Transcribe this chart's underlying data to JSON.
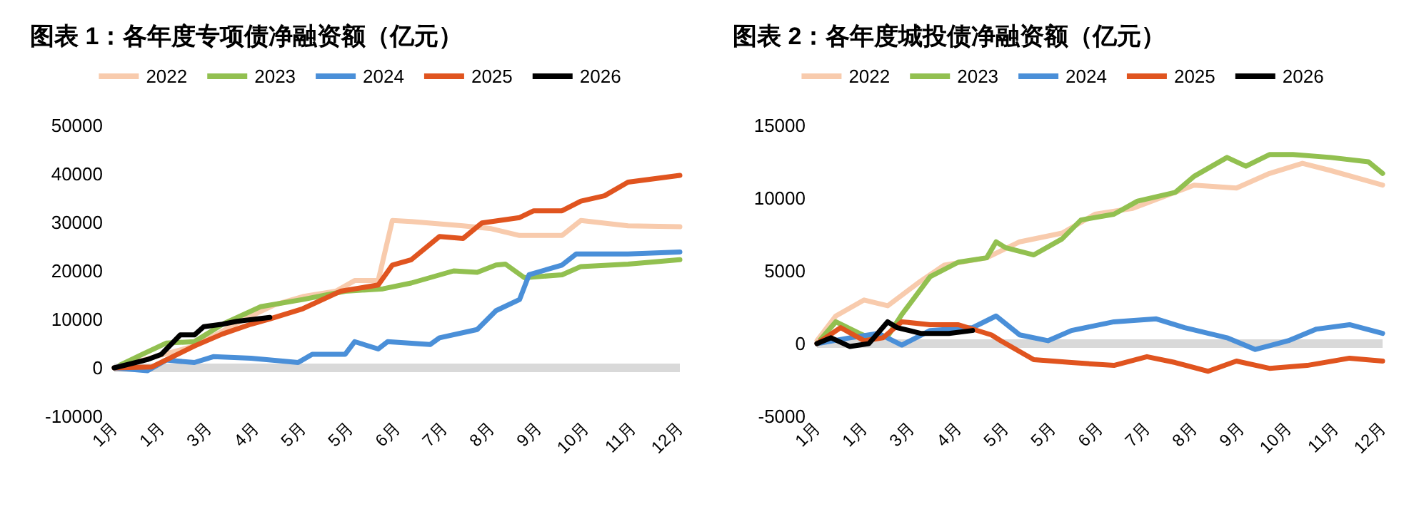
{
  "chart_data": [
    {
      "type": "line",
      "title": "图表 1：各年度专项债净融资额（亿元）",
      "legend": "top",
      "grid": false,
      "xlim": [
        "--01-01",
        "--12-27"
      ],
      "xticks": [
        {
          "value": "--01-01",
          "label": "1月"
        },
        {
          "value": "--01-31",
          "label": "1月"
        },
        {
          "value": "--03-02",
          "label": "3月"
        },
        {
          "value": "--04-01",
          "label": "4月"
        },
        {
          "value": "--05-01",
          "label": "5月"
        },
        {
          "value": "--05-31",
          "label": "5月"
        },
        {
          "value": "--06-30",
          "label": "6月"
        },
        {
          "value": "--07-30",
          "label": "7月"
        },
        {
          "value": "--08-29",
          "label": "8月"
        },
        {
          "value": "--09-28",
          "label": "9月"
        },
        {
          "value": "--10-28",
          "label": "10月"
        },
        {
          "value": "--11-27",
          "label": "11月"
        },
        {
          "value": "--12-27",
          "label": "12月"
        }
      ],
      "ylim": [
        -10000,
        50000
      ],
      "yticks": [
        -10000,
        0,
        10000,
        20000,
        30000,
        40000,
        50000
      ],
      "ref_lines": [
        {
          "axis": "y",
          "value": 0,
          "color": "#d9d9d9"
        }
      ],
      "series": [
        {
          "name": "2022",
          "color": "#f8cbad",
          "x": [
            "--01-01",
            "--02-21",
            "--03-29",
            "--04-13",
            "--05-01",
            "--05-22",
            "--06-03",
            "--06-18",
            "--06-27",
            "--07-09",
            "--08-11",
            "--08-29",
            "--09-16",
            "--10-13",
            "--10-25",
            "--11-24",
            "--12-27"
          ],
          "values": [
            0,
            4500,
            10700,
            13000,
            14700,
            15800,
            18000,
            18000,
            30400,
            30200,
            29300,
            28700,
            27300,
            27300,
            30400,
            29300,
            29100
          ]
        },
        {
          "name": "2023",
          "color": "#92c050",
          "x": [
            "--01-01",
            "--01-19",
            "--02-03",
            "--02-21",
            "--03-11",
            "--04-04",
            "--05-01",
            "--05-28",
            "--06-21",
            "--07-09",
            "--08-05",
            "--08-20",
            "--09-01",
            "--09-07",
            "--09-19",
            "--10-13",
            "--10-25",
            "--11-24",
            "--12-27"
          ],
          "values": [
            0,
            2800,
            5100,
            5400,
            9000,
            12600,
            14100,
            15800,
            16300,
            17500,
            20000,
            19700,
            21200,
            21400,
            18600,
            19200,
            20900,
            21400,
            22300
          ]
        },
        {
          "name": "2024",
          "color": "#4a8fd8",
          "x": [
            "--01-01",
            "--01-22",
            "--02-03",
            "--02-21",
            "--03-05",
            "--03-29",
            "--04-28",
            "--05-07",
            "--05-28",
            "--06-03",
            "--06-18",
            "--06-24",
            "--07-21",
            "--07-27",
            "--08-20",
            "--09-01",
            "--09-16",
            "--09-22",
            "--10-13",
            "--10-22",
            "--11-24",
            "--12-27"
          ],
          "values": [
            0,
            -600,
            1600,
            1100,
            2300,
            2000,
            1100,
            2800,
            2800,
            5400,
            3900,
            5400,
            4800,
            6200,
            7900,
            11800,
            14100,
            19200,
            21200,
            23500,
            23500,
            23900
          ]
        },
        {
          "name": "2025",
          "color": "#e0541f",
          "x": [
            "--01-01",
            "--01-25",
            "--02-21",
            "--03-11",
            "--03-29",
            "--04-10",
            "--05-01",
            "--05-25",
            "--06-18",
            "--06-27",
            "--07-09",
            "--07-27",
            "--08-11",
            "--08-23",
            "--09-16",
            "--09-25",
            "--10-13",
            "--10-25",
            "--11-09",
            "--11-24",
            "--12-27"
          ],
          "values": [
            0,
            200,
            4500,
            7000,
            9000,
            10100,
            12200,
            15800,
            17100,
            21200,
            22300,
            27100,
            26700,
            29900,
            31000,
            32400,
            32400,
            34400,
            35500,
            38300,
            39700
          ]
        },
        {
          "name": "2026",
          "color": "#000000",
          "x": [
            "--01-01",
            "--01-22",
            "--01-31",
            "--02-12",
            "--02-21",
            "--02-27",
            "--03-11",
            "--03-20",
            "--04-10"
          ],
          "values": [
            0,
            1700,
            2800,
            6800,
            6800,
            8500,
            9000,
            9600,
            10400
          ]
        }
      ]
    },
    {
      "type": "line",
      "title": "图表 2：各年度城投债净融资额（亿元）",
      "legend": "top",
      "grid": false,
      "xlim": [
        "--01-01",
        "--12-27"
      ],
      "xticks": [
        {
          "value": "--01-01",
          "label": "1月"
        },
        {
          "value": "--01-31",
          "label": "1月"
        },
        {
          "value": "--03-02",
          "label": "3月"
        },
        {
          "value": "--04-01",
          "label": "4月"
        },
        {
          "value": "--05-01",
          "label": "5月"
        },
        {
          "value": "--05-31",
          "label": "5月"
        },
        {
          "value": "--06-30",
          "label": "6月"
        },
        {
          "value": "--07-30",
          "label": "7月"
        },
        {
          "value": "--08-29",
          "label": "8月"
        },
        {
          "value": "--09-28",
          "label": "9月"
        },
        {
          "value": "--10-28",
          "label": "10月"
        },
        {
          "value": "--11-27",
          "label": "11月"
        },
        {
          "value": "--12-27",
          "label": "12月"
        }
      ],
      "ylim": [
        -5000,
        15000
      ],
      "yticks": [
        -5000,
        0,
        5000,
        10000,
        15000
      ],
      "ref_lines": [
        {
          "axis": "y",
          "value": 0,
          "color": "#d9d9d9"
        }
      ],
      "series": [
        {
          "name": "2022",
          "color": "#f8cbad",
          "x": [
            "--01-01",
            "--01-13",
            "--01-31",
            "--02-15",
            "--03-08",
            "--03-23",
            "--04-19",
            "--05-10",
            "--06-06",
            "--06-27",
            "--07-21",
            "--08-17",
            "--08-29",
            "--09-25",
            "--10-16",
            "--11-06",
            "--11-24",
            "--12-27"
          ],
          "values": [
            200,
            1900,
            3000,
            2600,
            4300,
            5400,
            5900,
            7000,
            7600,
            8900,
            9300,
            10400,
            10900,
            10700,
            11700,
            12400,
            11900,
            10900
          ]
        },
        {
          "name": "2023",
          "color": "#92c050",
          "x": [
            "--01-01",
            "--01-13",
            "--01-28",
            "--02-12",
            "--02-24",
            "--03-14",
            "--04-01",
            "--04-19",
            "--04-25",
            "--05-01",
            "--05-19",
            "--06-06",
            "--06-18",
            "--07-09",
            "--07-24",
            "--08-17",
            "--08-29",
            "--09-19",
            "--10-01",
            "--10-16",
            "--10-31",
            "--11-24",
            "--12-18",
            "--12-27"
          ],
          "values": [
            0,
            1500,
            700,
            0,
            2000,
            4600,
            5600,
            5900,
            7000,
            6600,
            6100,
            7200,
            8500,
            8900,
            9800,
            10400,
            11500,
            12800,
            12200,
            13000,
            13000,
            12800,
            12500,
            11700
          ]
        },
        {
          "name": "2024",
          "color": "#4a8fd8",
          "x": [
            "--01-01",
            "--01-22",
            "--02-09",
            "--02-24",
            "--03-14",
            "--04-10",
            "--04-25",
            "--05-10",
            "--05-28",
            "--06-12",
            "--07-09",
            "--08-05",
            "--08-23",
            "--09-19",
            "--10-07",
            "--10-28",
            "--11-15",
            "--12-06",
            "--12-27"
          ],
          "values": [
            0,
            400,
            700,
            -100,
            900,
            1100,
            1900,
            600,
            200,
            900,
            1500,
            1700,
            1100,
            400,
            -400,
            200,
            1000,
            1300,
            700
          ]
        },
        {
          "name": "2025",
          "color": "#e0541f",
          "x": [
            "--01-01",
            "--01-16",
            "--01-31",
            "--02-12",
            "--02-24",
            "--03-14",
            "--04-01",
            "--04-22",
            "--04-28",
            "--05-19",
            "--06-12",
            "--07-09",
            "--07-30",
            "--08-17",
            "--09-07",
            "--09-25",
            "--10-16",
            "--11-09",
            "--12-06",
            "--12-27"
          ],
          "values": [
            0,
            1100,
            200,
            400,
            1500,
            1300,
            1300,
            600,
            200,
            -1100,
            -1300,
            -1500,
            -900,
            -1300,
            -1900,
            -1200,
            -1700,
            -1500,
            -1000,
            -1200
          ]
        },
        {
          "name": "2026",
          "color": "#000000",
          "x": [
            "--01-01",
            "--01-10",
            "--01-22",
            "--02-03",
            "--02-15",
            "--02-21",
            "--03-08",
            "--03-26",
            "--04-10"
          ],
          "values": [
            0,
            400,
            -200,
            0,
            1500,
            1100,
            700,
            700,
            900
          ]
        }
      ]
    }
  ]
}
